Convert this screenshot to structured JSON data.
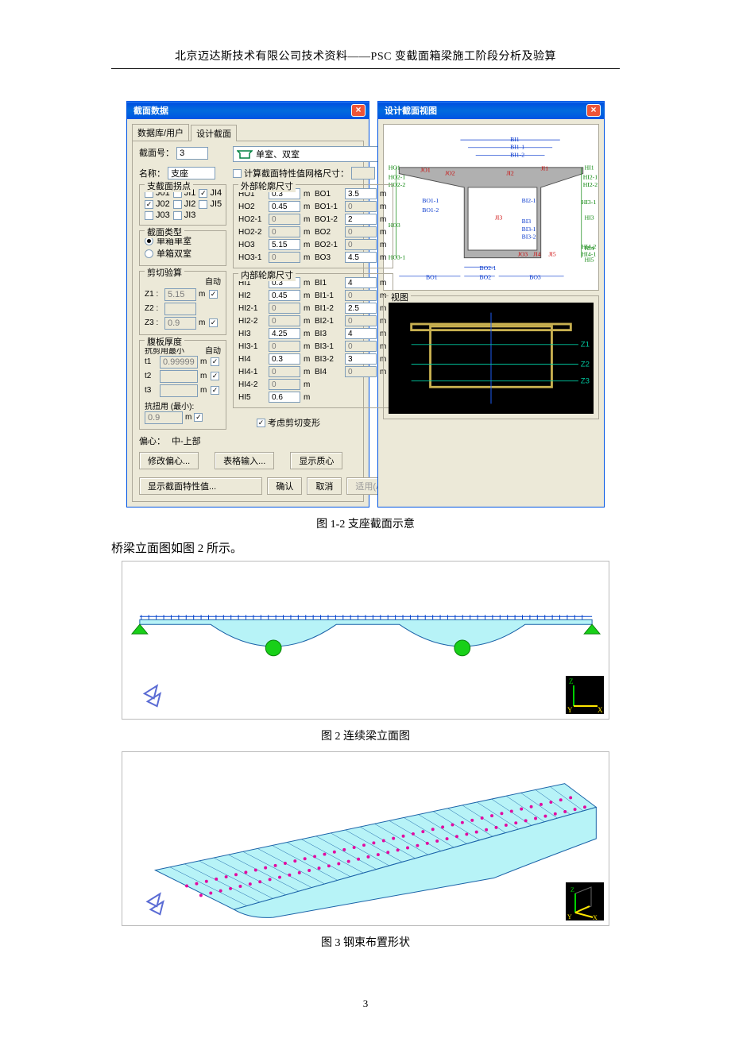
{
  "header": "北京迈达斯技术有限公司技术资料——PSC 变截面箱梁施工阶段分析及验算",
  "dialog": {
    "title": "截面数据",
    "tab1": "数据库/用户",
    "tab2": "设计截面",
    "sectNoLabel": "截面号：",
    "sectNo": "3",
    "nameLabel": "名称：",
    "name": "支座",
    "sectionTypeDropdown": "单室、双室",
    "calcCheckboxLabel": "计算截面特性值网格尺寸：",
    "calcUnit": "m",
    "jointGroup": "支截面拐点",
    "jointItems": [
      "J01",
      "JI1",
      "JI4",
      "J02",
      "JI2",
      "JI5",
      "J03",
      "JI3"
    ],
    "jointChecked": [
      false,
      false,
      true,
      true,
      false,
      false,
      false,
      false
    ],
    "sectTypeGroup": "截面类型",
    "radioSingle": "单箱单室",
    "radioDouble": "单箱双室",
    "shearGroup": "剪切验算",
    "autoLabel": "自动",
    "z1Label": "Z1 :",
    "z1Val": "5.15",
    "z2Label": "Z2 :",
    "z3Label": "Z3 :",
    "z3Val": "0.9",
    "unit_m": "m",
    "webGroup": "腹板厚度",
    "webAutoLabel": "抗剪用最小",
    "t1Label": "t1",
    "t1Val": "0.99999",
    "t2Label": "t2",
    "t3Label": "t3",
    "torsionLabel": "抗扭用 (最小):",
    "torsionVal": "0.9",
    "outerGroup": "外部轮廓尺寸",
    "innerGroup": "内部轮廓尺寸",
    "outerRows": [
      {
        "l": "HO1",
        "lv": "0.3",
        "r": "BO1",
        "rv": "3.5"
      },
      {
        "l": "HO2",
        "lv": "0.45",
        "r": "BO1-1",
        "rv": "0"
      },
      {
        "l": "HO2-1",
        "lv": "0",
        "r": "BO1-2",
        "rv": "2"
      },
      {
        "l": "HO2-2",
        "lv": "0",
        "r": "BO2",
        "rv": "0"
      },
      {
        "l": "HO3",
        "lv": "5.15",
        "r": "BO2-1",
        "rv": "0"
      },
      {
        "l": "HO3-1",
        "lv": "0",
        "r": "BO3",
        "rv": "4.5"
      }
    ],
    "innerRows": [
      {
        "l": "HI1",
        "lv": "0.3",
        "r": "BI1",
        "rv": "4"
      },
      {
        "l": "HI2",
        "lv": "0.45",
        "r": "BI1-1",
        "rv": "0"
      },
      {
        "l": "HI2-1",
        "lv": "0",
        "r": "BI1-2",
        "rv": "2.5"
      },
      {
        "l": "HI2-2",
        "lv": "0",
        "r": "BI2-1",
        "rv": "0"
      },
      {
        "l": "HI3",
        "lv": "4.25",
        "r": "BI3",
        "rv": "4"
      },
      {
        "l": "HI3-1",
        "lv": "0",
        "r": "BI3-1",
        "rv": "0"
      },
      {
        "l": "HI4",
        "lv": "0.3",
        "r": "BI3-2",
        "rv": "3"
      },
      {
        "l": "HI4-1",
        "lv": "0",
        "r": "BI4",
        "rv": "0"
      },
      {
        "l": "HI4-2",
        "lv": "0",
        "r": "",
        "rv": ""
      },
      {
        "l": "HI5",
        "lv": "0.6",
        "r": "",
        "rv": ""
      }
    ],
    "shearDeformChk": "考虑剪切变形",
    "eccLabel": "偏心：",
    "eccVal": "中-上部",
    "btnModifyEcc": "修改偏心...",
    "btnTableInput": "表格输入...",
    "btnShowCentroid": "显示质心",
    "btnShowProps": "显示截面特性值...",
    "btnOK": "确认",
    "btnCancel": "取消",
    "btnApply": "适用(A)"
  },
  "preview": {
    "title": "设计截面视图",
    "viewGroup": "视图",
    "labels": {
      "HO1": "HO1",
      "HO2_1": "HO2-1",
      "HO2_2": "HO2-2",
      "HO3": "HO3",
      "HO3_1": "HO3-1",
      "HI1": "HI1",
      "HI2_1": "HI2-1",
      "HI2_2": "HI2-2",
      "HI3": "HI3",
      "HI3_1": "HI3-1",
      "HI4": "HI4",
      "HI4_1": "HI4-1",
      "HI4_2": "HI4-2",
      "HI5": "HI5",
      "BI1": "BI1",
      "BI1_1": "BI1-1",
      "BI1_2": "BI1-2",
      "BI2_1": "BI2-1",
      "BI3": "BI3",
      "BI3_1": "BI3-1",
      "BI3_2": "BI3-2",
      "BO1": "BO1",
      "BO1_1": "BO1-1",
      "BO1_2": "BO1-2",
      "BO2": "BO2",
      "BO2_1": "BO2-1",
      "BO3": "BO3",
      "JO1": "JO1",
      "JO2": "JO2",
      "JO3": "JO3",
      "JI1": "JI1",
      "JI2": "JI2",
      "JI3": "JI3",
      "JI4": "JI4",
      "JI5": "JI5",
      "Z1": "Z1",
      "Z2": "Z2",
      "Z3": "Z3"
    },
    "colors": {
      "sectionFill": "#b0b0b0",
      "sectionStroke": "#505050",
      "hoColor": "#008000",
      "hiColor": "#008000",
      "biColor": "#0033cc",
      "boColor": "#0033cc",
      "jColor": "#cc0000",
      "zColor": "#00c8a0",
      "boxOutline": "#c8b050"
    }
  },
  "captions": {
    "fig1": "图 1-2  支座截面示意",
    "fig2text": "桥梁立面图如图 2 所示。",
    "fig2": "图 2  连续梁立面图",
    "fig3": "图 3  钢束布置形状"
  },
  "pageNumber": "3",
  "fig2": {
    "bg": "#ffffff",
    "beamFill": "#b7f3f7",
    "beamStroke": "#1a62a8",
    "supportColor": "#18d018",
    "axisBg": "#000000",
    "axisY": "#ffe600",
    "axisX": "#ffe600",
    "axisZ": "#00d000"
  },
  "fig3": {
    "bg": "#ffffff",
    "deckFill": "#b7f3f7",
    "deckStroke": "#1a62a8",
    "tendonColor": "#e20aa0",
    "axisBg": "#000000"
  }
}
